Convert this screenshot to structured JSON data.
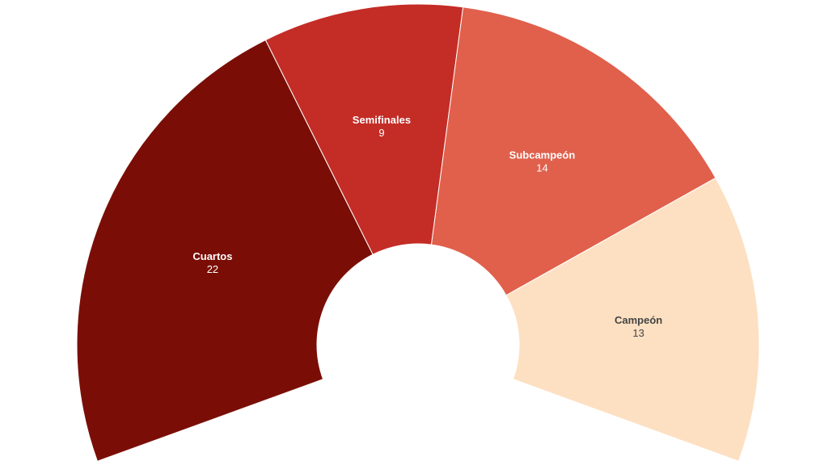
{
  "chart_data": {
    "type": "pie",
    "variant": "semi-donut",
    "title": "",
    "categories": [
      "Cuartos",
      "Semifinales",
      "Subcampeón",
      "Campeón"
    ],
    "values": [
      22,
      9,
      14,
      13
    ],
    "colors": [
      "#7a0e07",
      "#c42c26",
      "#e0604c",
      "#fde0c2"
    ],
    "label_colors": [
      "#ffffff",
      "#ffffff",
      "#ffffff",
      "#444444"
    ],
    "legend": "none"
  }
}
